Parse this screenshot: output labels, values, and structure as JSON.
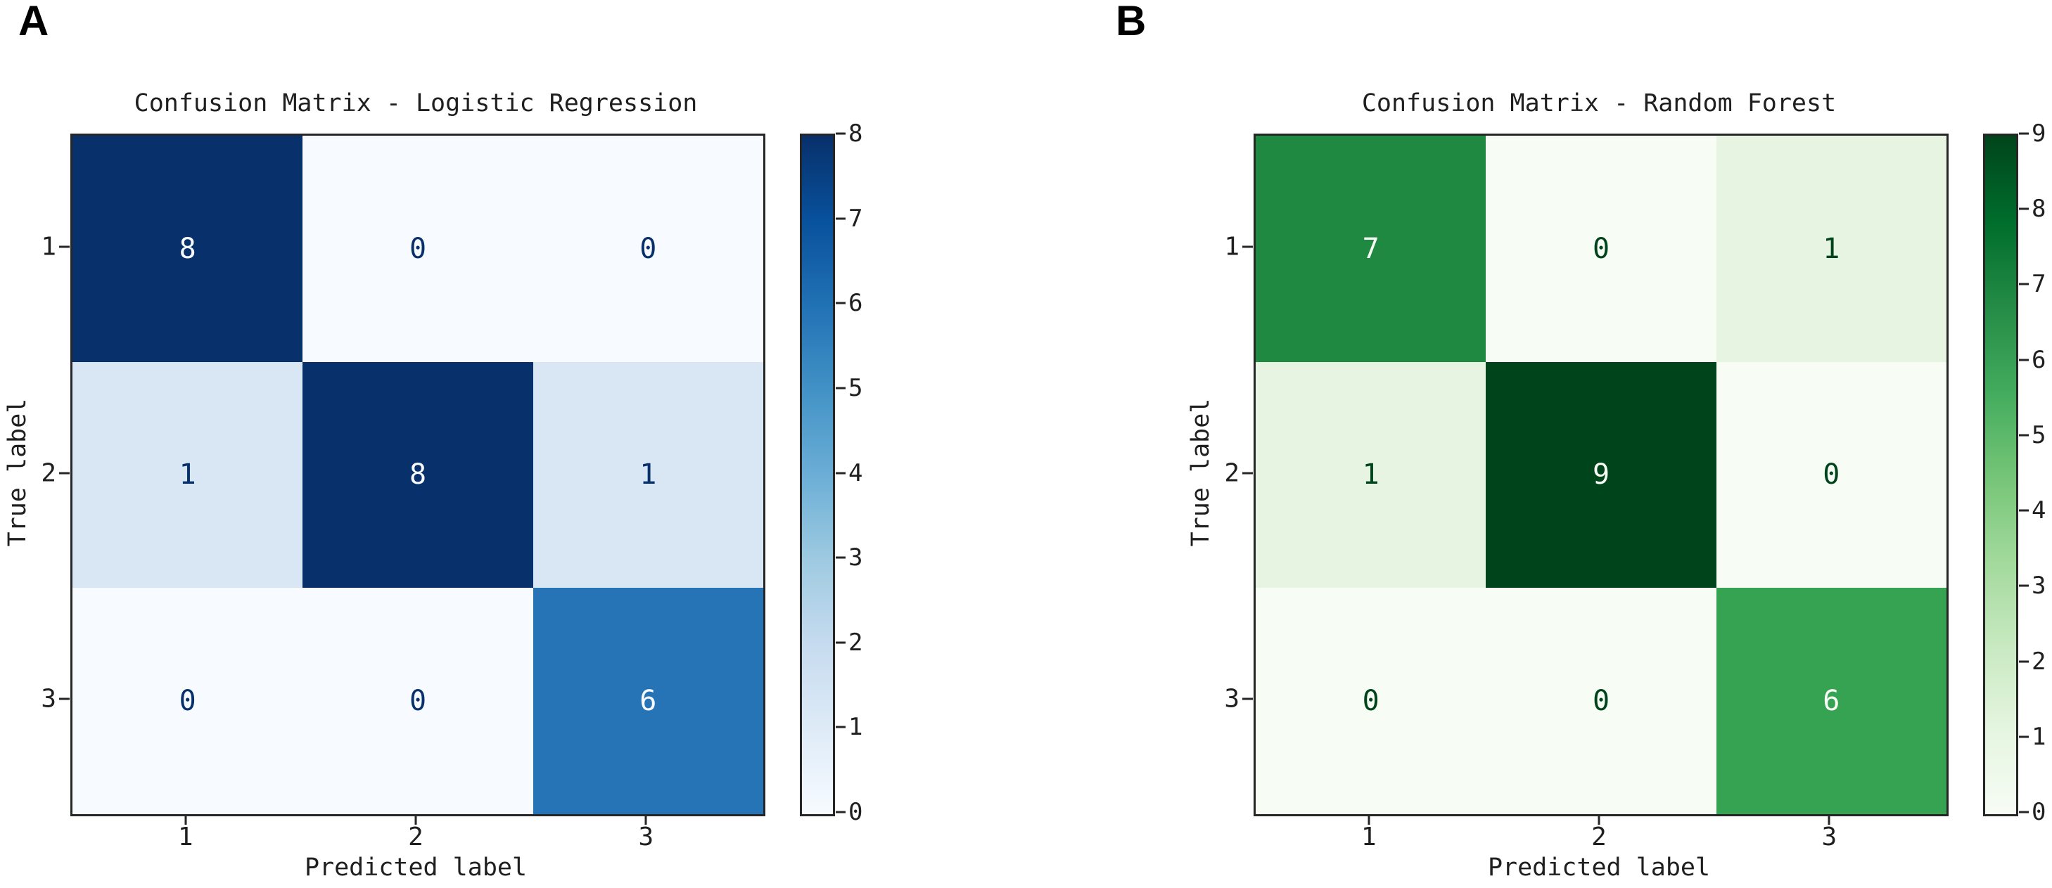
{
  "figure": {
    "panels": [
      {
        "panel_label": "A",
        "title": "Confusion Matrix - Logistic Regression",
        "xlabel": "Predicted label",
        "ylabel": "True label",
        "xticks": [
          "1",
          "2",
          "3"
        ],
        "yticks": [
          "1",
          "2",
          "3"
        ],
        "colorbar_ticks": [
          "0",
          "1",
          "2",
          "3",
          "4",
          "5",
          "6",
          "7",
          "8"
        ],
        "colors": {
          "axis": "#262626",
          "cell_bg": [
            [
              "#08306b",
              "#f7fbff",
              "#f7fbff"
            ],
            [
              "#d9e6f4",
              "#08306b",
              "#d9e6f4"
            ],
            [
              "#f7fbff",
              "#f7fbff",
              "#2674b6"
            ]
          ],
          "cell_text": [
            [
              "#f7fbff",
              "#08306b",
              "#08306b"
            ],
            [
              "#08306b",
              "#f7fbff",
              "#08306b"
            ],
            [
              "#08306b",
              "#08306b",
              "#f7fbff"
            ]
          ],
          "gradient": [
            "#f7fbff",
            "#deebf7",
            "#c6dbef",
            "#9ecae1",
            "#6baed6",
            "#4292c6",
            "#2171b5",
            "#08519c",
            "#08306b"
          ]
        }
      },
      {
        "panel_label": "B",
        "title": "Confusion Matrix - Random Forest",
        "xlabel": "Predicted label",
        "ylabel": "True label",
        "xticks": [
          "1",
          "2",
          "3"
        ],
        "yticks": [
          "1",
          "2",
          "3"
        ],
        "colorbar_ticks": [
          "0",
          "1",
          "2",
          "3",
          "4",
          "5",
          "6",
          "7",
          "8",
          "9"
        ],
        "colors": {
          "axis": "#262626",
          "cell_bg": [
            [
              "#1f8841",
              "#f7fcf5",
              "#e6f4e1"
            ],
            [
              "#e6f4e1",
              "#00441b",
              "#f7fcf5"
            ],
            [
              "#f7fcf5",
              "#f7fcf5",
              "#36a353"
            ]
          ],
          "cell_text": [
            [
              "#f7fcf5",
              "#00441b",
              "#00441b"
            ],
            [
              "#00441b",
              "#f7fcf5",
              "#00441b"
            ],
            [
              "#00441b",
              "#00441b",
              "#f7fcf5"
            ]
          ],
          "gradient": [
            "#f7fcf5",
            "#e5f5e0",
            "#c7e9c0",
            "#a1d99b",
            "#74c476",
            "#41ab5d",
            "#238b45",
            "#006d2c",
            "#00441b"
          ]
        }
      }
    ]
  },
  "chart_data": [
    {
      "type": "heatmap",
      "panel_label": "A",
      "title": "Confusion Matrix - Logistic Regression",
      "xlabel": "Predicted label",
      "ylabel": "True label",
      "x_categories": [
        "1",
        "2",
        "3"
      ],
      "y_categories": [
        "1",
        "2",
        "3"
      ],
      "matrix": [
        [
          8,
          0,
          0
        ],
        [
          1,
          8,
          1
        ],
        [
          0,
          0,
          6
        ]
      ],
      "colormap": "Blues",
      "colorbar_range": [
        0,
        8
      ],
      "colorbar_ticks": [
        0,
        1,
        2,
        3,
        4,
        5,
        6,
        7,
        8
      ],
      "legend_position": "right-colorbar",
      "grid": false
    },
    {
      "type": "heatmap",
      "panel_label": "B",
      "title": "Confusion Matrix - Random Forest",
      "xlabel": "Predicted label",
      "ylabel": "True label",
      "x_categories": [
        "1",
        "2",
        "3"
      ],
      "y_categories": [
        "1",
        "2",
        "3"
      ],
      "matrix": [
        [
          7,
          0,
          1
        ],
        [
          1,
          9,
          0
        ],
        [
          0,
          0,
          6
        ]
      ],
      "colormap": "Greens",
      "colorbar_range": [
        0,
        9
      ],
      "colorbar_ticks": [
        0,
        1,
        2,
        3,
        4,
        5,
        6,
        7,
        8,
        9
      ],
      "legend_position": "right-colorbar",
      "grid": false
    }
  ]
}
